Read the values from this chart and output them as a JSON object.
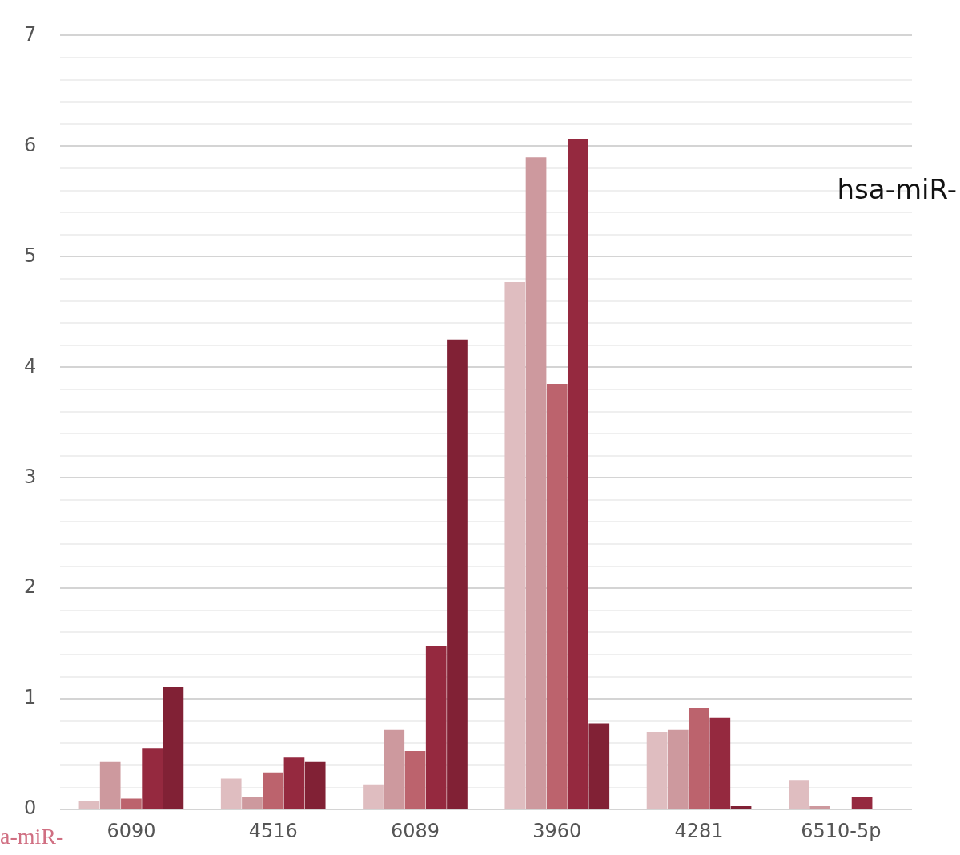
{
  "chart_data": {
    "type": "bar",
    "categories": [
      "6090",
      "4516",
      "6089",
      "3960",
      "4281",
      "6510-5p"
    ],
    "series": [
      {
        "color": "#dfbdc0",
        "values": [
          0.08,
          0.28,
          0.22,
          4.77,
          0.7,
          0.26
        ]
      },
      {
        "color": "#cd999e",
        "values": [
          0.43,
          0.11,
          0.72,
          5.9,
          0.72,
          0.03
        ]
      },
      {
        "color": "#bc636d",
        "values": [
          0.1,
          0.33,
          0.53,
          3.85,
          0.92,
          null
        ]
      },
      {
        "color": "#95293f",
        "values": [
          0.55,
          0.47,
          1.48,
          6.06,
          0.83,
          0.11
        ]
      },
      {
        "color": "#812135",
        "values": [
          1.11,
          0.43,
          4.25,
          0.78,
          0.03,
          null
        ]
      }
    ],
    "ylim": [
      0,
      7
    ],
    "yticks": [
      0,
      {
        "value": 0.2,
        "label": null
      },
      {
        "value": 0.4,
        "label": null
      },
      {
        "value": 0.6,
        "label": null
      },
      {
        "value": 0.8,
        "label": null
      },
      1,
      {
        "value": 1.2,
        "label": null
      },
      {
        "value": 1.4,
        "label": null
      },
      {
        "value": 1.6,
        "label": null
      },
      {
        "value": 1.8,
        "label": null
      },
      2,
      {
        "value": 2.2,
        "label": null
      },
      {
        "value": 2.4,
        "label": null
      },
      {
        "value": 2.6,
        "label": null
      },
      {
        "value": 2.8,
        "label": null
      },
      3,
      {
        "value": 3.2,
        "label": null
      },
      {
        "value": 3.4,
        "label": null
      },
      {
        "value": 3.6,
        "label": null
      },
      {
        "value": 3.8,
        "label": null
      },
      4,
      {
        "value": 4.2,
        "label": null
      },
      {
        "value": 4.4,
        "label": null
      },
      {
        "value": 4.6,
        "label": null
      },
      {
        "value": 4.8,
        "label": null
      },
      5,
      {
        "value": 5.2,
        "label": null
      },
      {
        "value": 5.4,
        "label": null
      },
      {
        "value": 5.6,
        "label": null
      },
      {
        "value": 5.8,
        "label": null
      },
      6,
      {
        "value": 6.2,
        "label": null
      },
      {
        "value": 6.4,
        "label": null
      },
      {
        "value": 6.6,
        "label": null
      },
      {
        "value": 6.8,
        "label": null
      },
      7
    ],
    "grid": "y",
    "annotations": [
      "hsa-miR-",
      "a-miR-"
    ]
  }
}
